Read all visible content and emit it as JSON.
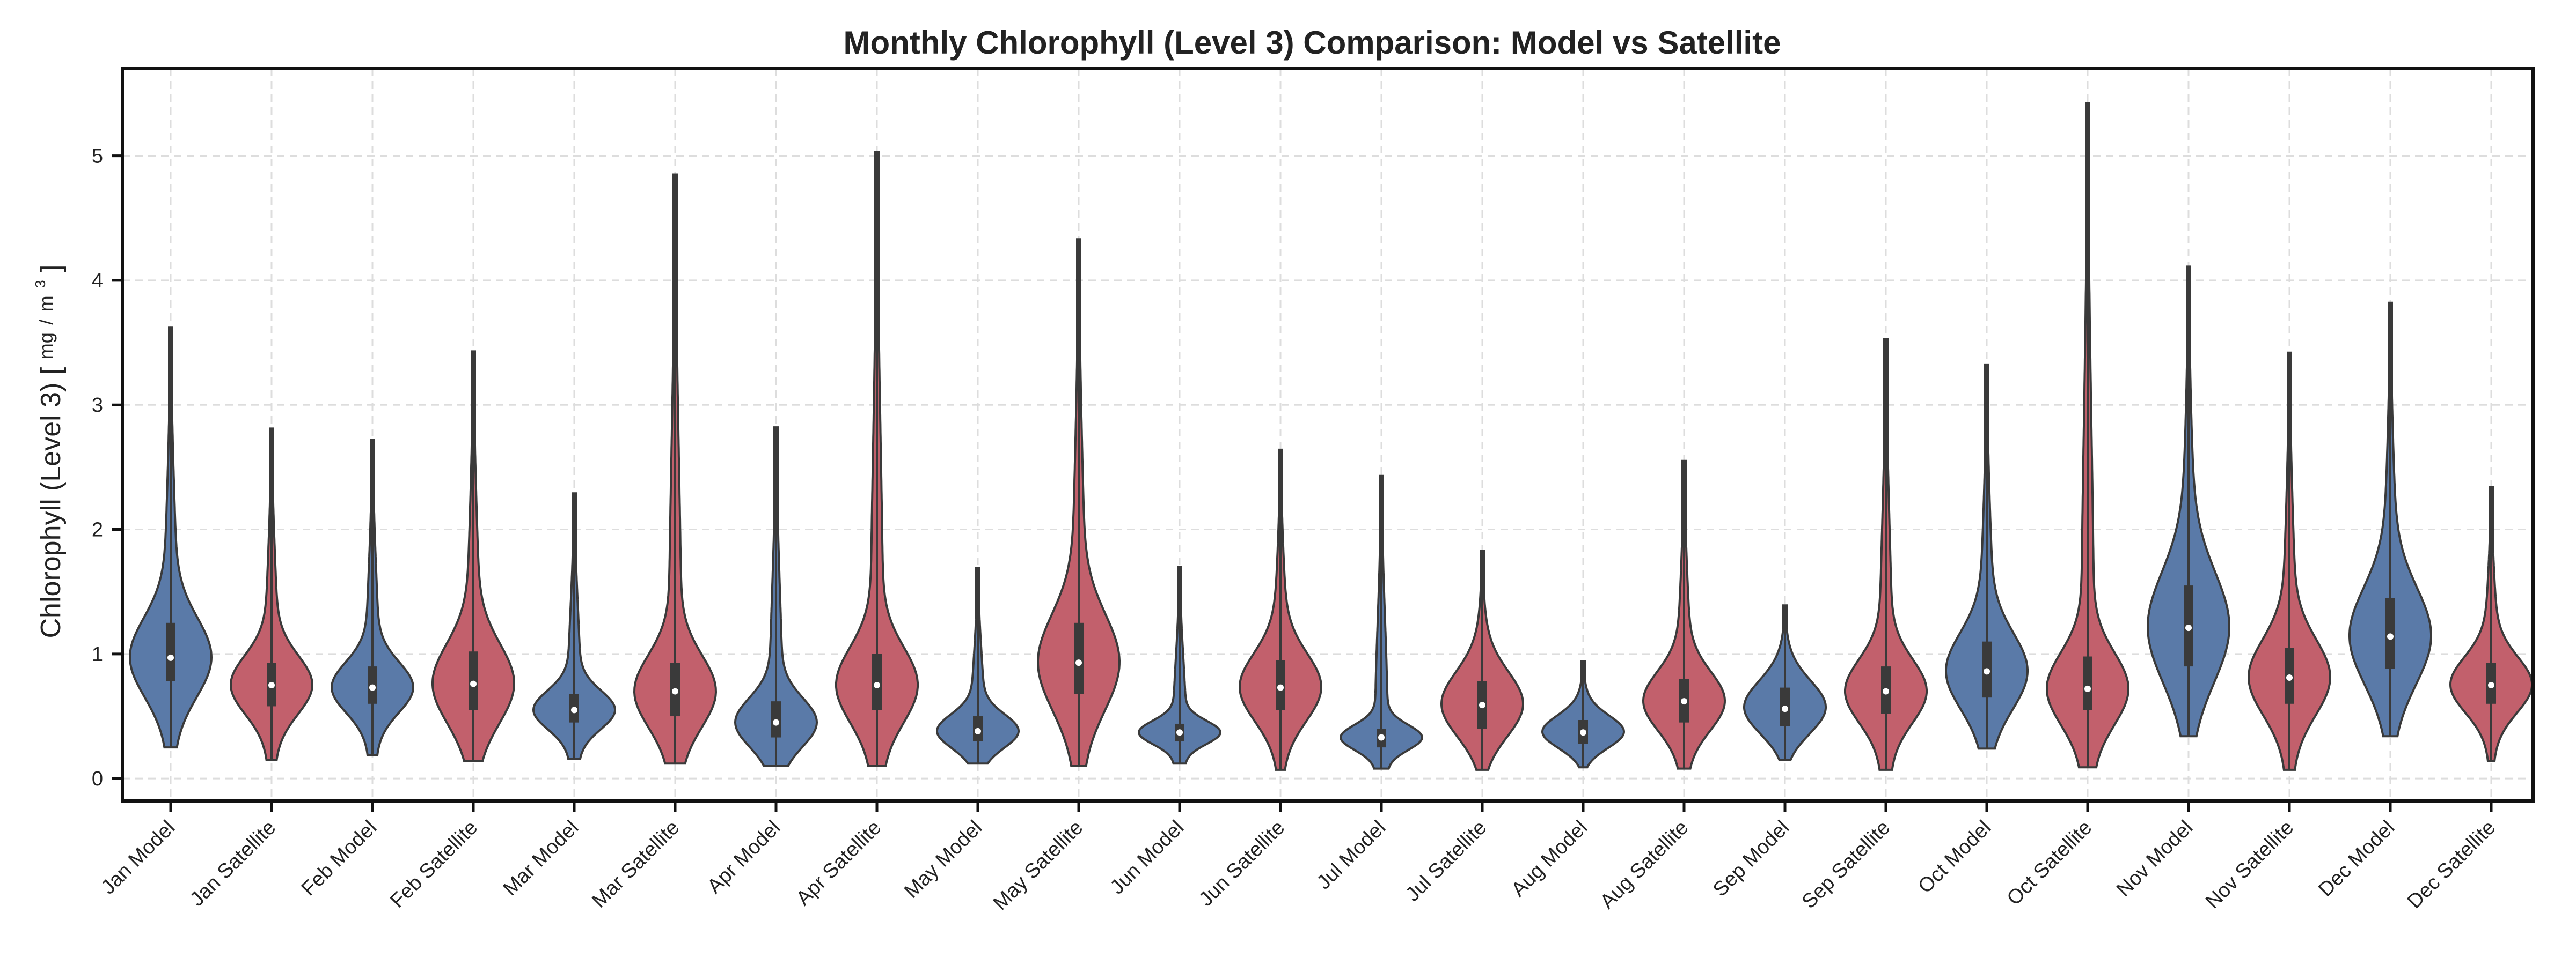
{
  "chart_data": {
    "type": "violin",
    "title": "Monthly Chlorophyll (Level 3) Comparison: Model vs Satellite",
    "ylabel_main": "Chlorophyll (Level 3)",
    "ylabel_unit_num": "mg",
    "ylabel_unit_den": "m",
    "ylabel_unit_exp": "3",
    "xlabel": "",
    "ylim": [
      -0.18,
      5.7
    ],
    "yticks": [
      0,
      1,
      2,
      3,
      4,
      5
    ],
    "grid": true,
    "colors": {
      "Model": "#5a7aa8",
      "Satellite": "#c2606c"
    },
    "categories": [
      "Jan Model",
      "Jan Satellite",
      "Feb Model",
      "Feb Satellite",
      "Mar Model",
      "Mar Satellite",
      "Apr Model",
      "Apr Satellite",
      "May Model",
      "May Satellite",
      "Jun Model",
      "Jun Satellite",
      "Jul Model",
      "Jul Satellite",
      "Aug Model",
      "Aug Satellite",
      "Sep Model",
      "Sep Satellite",
      "Oct Model",
      "Oct Satellite",
      "Nov Model",
      "Nov Satellite",
      "Dec Model",
      "Dec Satellite"
    ],
    "violins": [
      {
        "category": "Jan Model",
        "group": "Model",
        "min": 0.25,
        "q1": 0.78,
        "median": 0.97,
        "q3": 1.25,
        "max": 3.62
      },
      {
        "category": "Jan Satellite",
        "group": "Satellite",
        "min": 0.15,
        "q1": 0.58,
        "median": 0.75,
        "q3": 0.93,
        "max": 2.81
      },
      {
        "category": "Feb Model",
        "group": "Model",
        "min": 0.19,
        "q1": 0.6,
        "median": 0.73,
        "q3": 0.9,
        "max": 2.72
      },
      {
        "category": "Feb Satellite",
        "group": "Satellite",
        "min": 0.14,
        "q1": 0.55,
        "median": 0.76,
        "q3": 1.02,
        "max": 3.43
      },
      {
        "category": "Mar Model",
        "group": "Model",
        "min": 0.16,
        "q1": 0.45,
        "median": 0.55,
        "q3": 0.68,
        "max": 2.29
      },
      {
        "category": "Mar Satellite",
        "group": "Satellite",
        "min": 0.12,
        "q1": 0.5,
        "median": 0.7,
        "q3": 0.93,
        "max": 4.85
      },
      {
        "category": "Apr Model",
        "group": "Model",
        "min": 0.1,
        "q1": 0.33,
        "median": 0.45,
        "q3": 0.62,
        "max": 2.82
      },
      {
        "category": "Apr Satellite",
        "group": "Satellite",
        "min": 0.1,
        "q1": 0.55,
        "median": 0.75,
        "q3": 1.0,
        "max": 5.03
      },
      {
        "category": "May Model",
        "group": "Model",
        "min": 0.12,
        "q1": 0.3,
        "median": 0.38,
        "q3": 0.5,
        "max": 1.69
      },
      {
        "category": "May Satellite",
        "group": "Satellite",
        "min": 0.1,
        "q1": 0.68,
        "median": 0.93,
        "q3": 1.25,
        "max": 4.33
      },
      {
        "category": "Jun Model",
        "group": "Model",
        "min": 0.12,
        "q1": 0.3,
        "median": 0.37,
        "q3": 0.44,
        "max": 1.7
      },
      {
        "category": "Jun Satellite",
        "group": "Satellite",
        "min": 0.07,
        "q1": 0.55,
        "median": 0.73,
        "q3": 0.95,
        "max": 2.64
      },
      {
        "category": "Jul Model",
        "group": "Model",
        "min": 0.08,
        "q1": 0.25,
        "median": 0.33,
        "q3": 0.4,
        "max": 2.43
      },
      {
        "category": "Jul Satellite",
        "group": "Satellite",
        "min": 0.07,
        "q1": 0.4,
        "median": 0.59,
        "q3": 0.78,
        "max": 1.83
      },
      {
        "category": "Aug Model",
        "group": "Model",
        "min": 0.09,
        "q1": 0.28,
        "median": 0.37,
        "q3": 0.47,
        "max": 0.94
      },
      {
        "category": "Aug Satellite",
        "group": "Satellite",
        "min": 0.08,
        "q1": 0.45,
        "median": 0.62,
        "q3": 0.8,
        "max": 2.55
      },
      {
        "category": "Sep Model",
        "group": "Model",
        "min": 0.15,
        "q1": 0.42,
        "median": 0.56,
        "q3": 0.73,
        "max": 1.39
      },
      {
        "category": "Sep Satellite",
        "group": "Satellite",
        "min": 0.07,
        "q1": 0.52,
        "median": 0.7,
        "q3": 0.9,
        "max": 3.53
      },
      {
        "category": "Oct Model",
        "group": "Model",
        "min": 0.24,
        "q1": 0.65,
        "median": 0.86,
        "q3": 1.1,
        "max": 3.32
      },
      {
        "category": "Oct Satellite",
        "group": "Satellite",
        "min": 0.09,
        "q1": 0.55,
        "median": 0.72,
        "q3": 0.98,
        "max": 5.42
      },
      {
        "category": "Nov Model",
        "group": "Model",
        "min": 0.34,
        "q1": 0.9,
        "median": 1.21,
        "q3": 1.55,
        "max": 4.11
      },
      {
        "category": "Nov Satellite",
        "group": "Satellite",
        "min": 0.07,
        "q1": 0.6,
        "median": 0.81,
        "q3": 1.05,
        "max": 3.42
      },
      {
        "category": "Dec Model",
        "group": "Model",
        "min": 0.34,
        "q1": 0.88,
        "median": 1.14,
        "q3": 1.45,
        "max": 3.82
      },
      {
        "category": "Dec Satellite",
        "group": "Satellite",
        "min": 0.14,
        "q1": 0.6,
        "median": 0.75,
        "q3": 0.93,
        "max": 2.34
      }
    ]
  }
}
